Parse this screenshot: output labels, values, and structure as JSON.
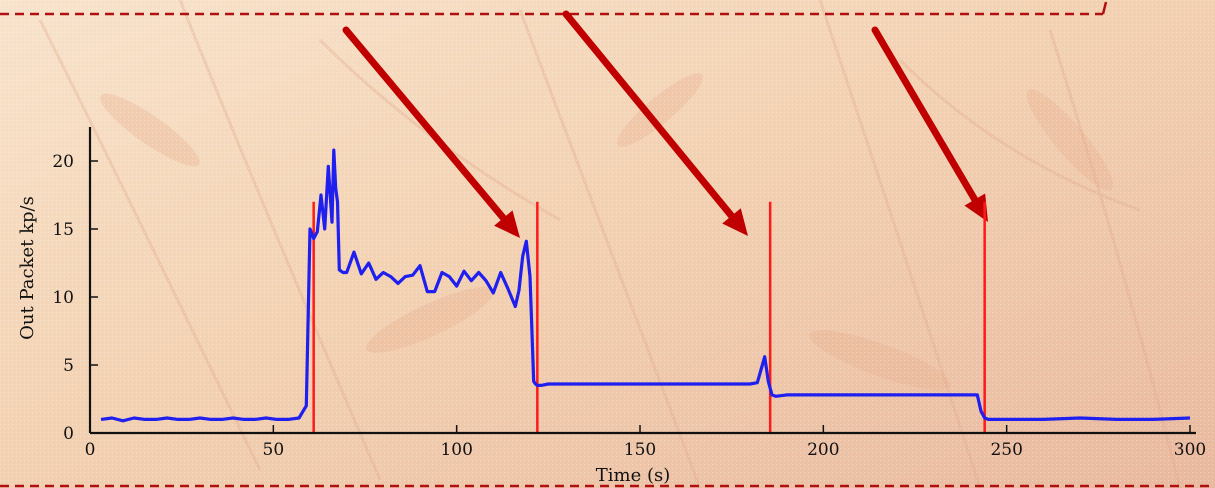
{
  "colors": {
    "series": "#1f1ff0",
    "event_markers": "#ff1a1a",
    "arrows": "#c00000",
    "border_dashes": "#b01010",
    "background_base": "#f6dcc4"
  },
  "chart_data": {
    "type": "line",
    "title": "",
    "xlabel": "Time (s)",
    "ylabel": "Out Packet kp/s",
    "xlim": [
      0,
      300
    ],
    "ylim": [
      0,
      22.5
    ],
    "x_ticks": [
      0,
      50,
      100,
      150,
      200,
      250,
      300
    ],
    "y_ticks": [
      0,
      5,
      10,
      15,
      20
    ],
    "grid": false,
    "legend": "none",
    "series": [
      {
        "x": [
          3,
          6,
          9,
          12,
          15,
          18,
          21,
          24,
          27,
          30,
          33,
          36,
          39,
          42,
          45,
          48,
          51,
          54,
          57,
          59,
          60,
          61,
          62,
          63,
          64,
          65,
          66,
          66.5,
          67,
          67.5,
          68,
          69,
          70,
          72,
          74,
          76,
          78,
          80,
          82,
          84,
          86,
          88,
          90,
          92,
          94,
          96,
          98,
          100,
          102,
          104,
          106,
          108,
          110,
          112,
          114,
          116,
          117,
          118,
          119,
          120,
          121,
          121.5,
          122,
          123,
          125,
          130,
          140,
          150,
          160,
          170,
          175,
          180,
          182,
          184,
          185,
          186,
          187,
          190,
          200,
          210,
          220,
          230,
          240,
          242,
          243,
          244,
          245,
          246,
          250,
          260,
          270,
          280,
          290,
          300
        ],
        "y": [
          1.0,
          1.1,
          0.9,
          1.1,
          1.0,
          1.0,
          1.1,
          1.0,
          1.0,
          1.1,
          1.0,
          1.0,
          1.1,
          1.0,
          1.0,
          1.1,
          1.0,
          1.0,
          1.1,
          2.0,
          15.0,
          14.3,
          14.8,
          17.5,
          15.0,
          19.6,
          15.5,
          20.8,
          18.0,
          17.0,
          12.0,
          11.8,
          11.8,
          13.3,
          11.7,
          12.5,
          11.3,
          11.8,
          11.5,
          11.0,
          11.5,
          11.6,
          12.3,
          10.4,
          10.4,
          11.8,
          11.5,
          10.8,
          11.9,
          11.2,
          11.8,
          11.2,
          10.3,
          11.8,
          10.6,
          9.3,
          10.5,
          13.0,
          14.1,
          11.5,
          3.8,
          3.6,
          3.5,
          3.5,
          3.6,
          3.6,
          3.6,
          3.6,
          3.6,
          3.6,
          3.6,
          3.6,
          3.7,
          5.6,
          3.8,
          2.8,
          2.7,
          2.8,
          2.8,
          2.8,
          2.8,
          2.8,
          2.8,
          2.8,
          1.6,
          1.1,
          1.0,
          1.0,
          1.0,
          1.0,
          1.1,
          1.0,
          1.0,
          1.1
        ]
      }
    ],
    "event_markers_x": [
      61,
      122,
      185.5,
      244
    ],
    "event_marker_top": 17
  }
}
